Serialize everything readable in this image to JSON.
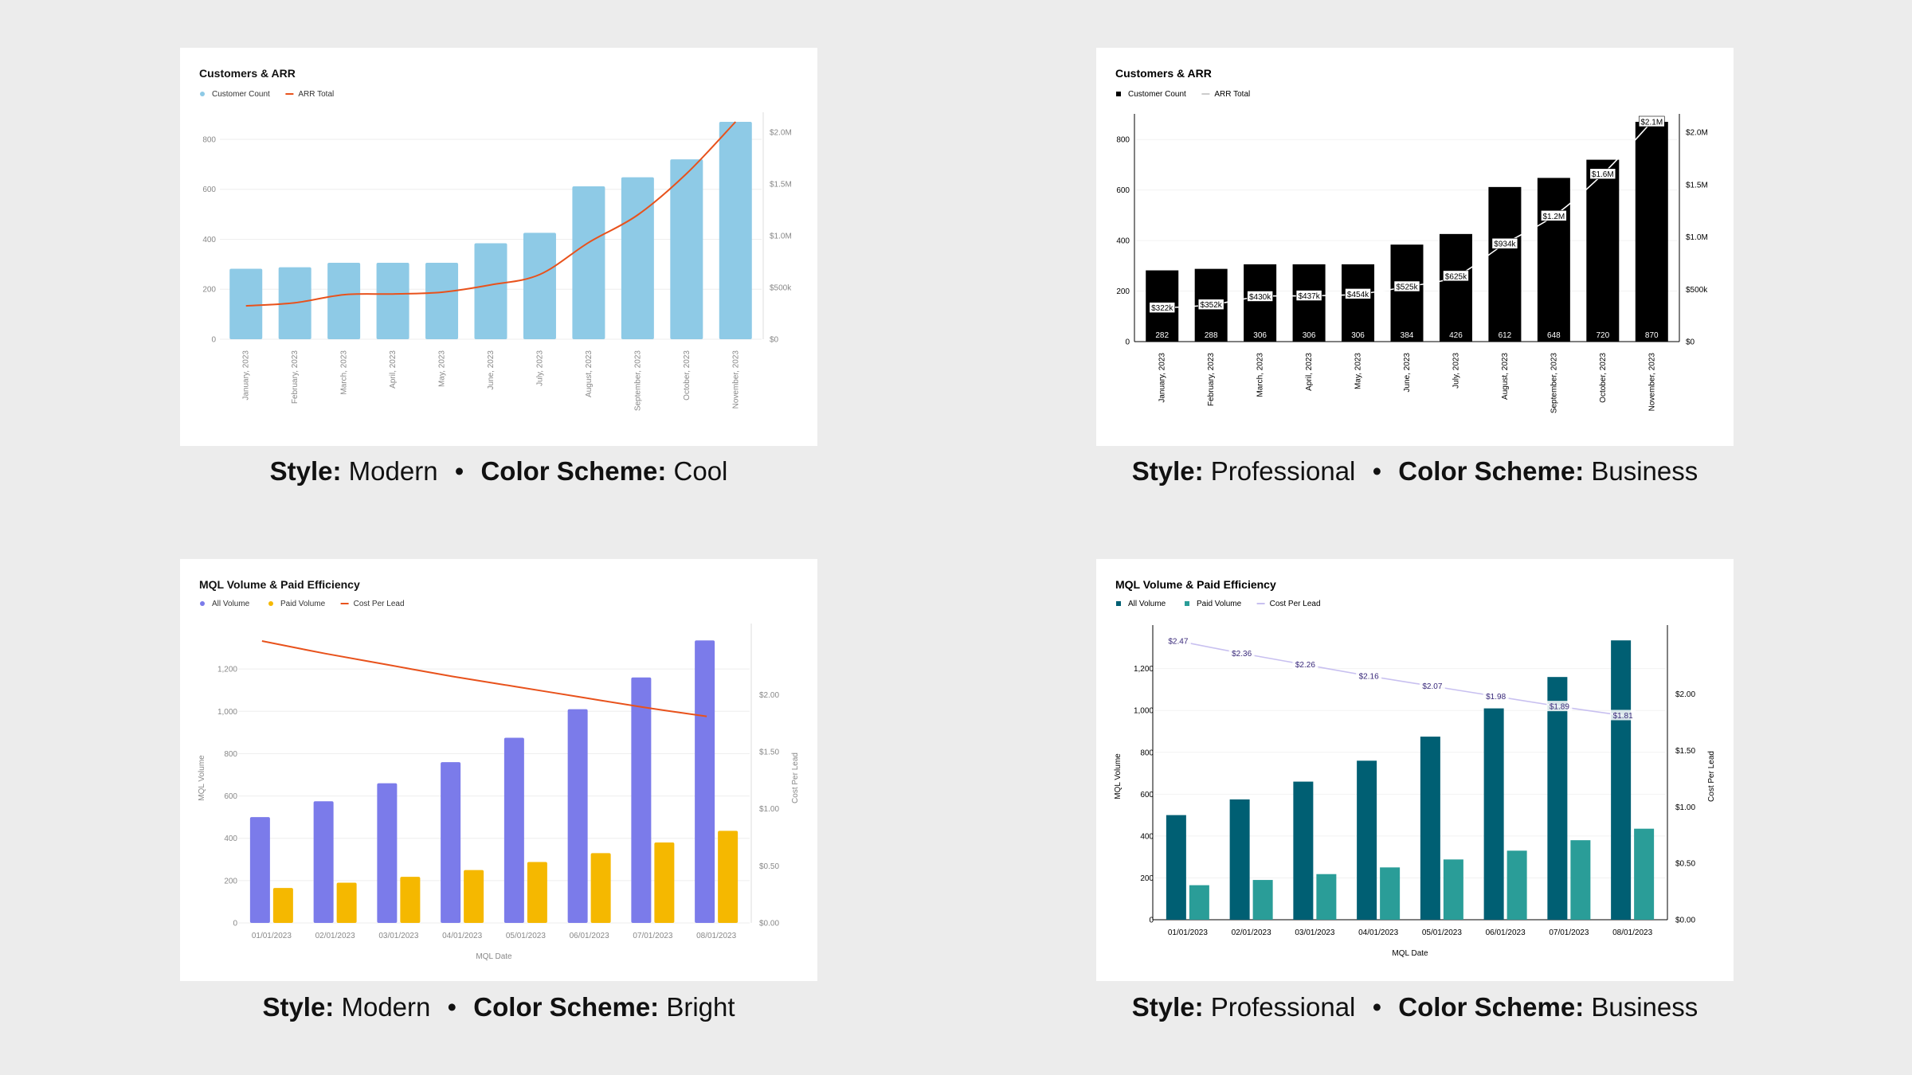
{
  "captions": [
    {
      "style_label": "Style:",
      "style": "Modern",
      "sep": "•",
      "scheme_label": "Color Scheme:",
      "scheme": "Cool"
    },
    {
      "style_label": "Style:",
      "style": "Professional",
      "sep": "•",
      "scheme_label": "Color Scheme:",
      "scheme": "Business"
    },
    {
      "style_label": "Style:",
      "style": "Modern",
      "sep": "•",
      "scheme_label": "Color Scheme:",
      "scheme": "Bright"
    },
    {
      "style_label": "Style:",
      "style": "Professional",
      "sep": "•",
      "scheme_label": "Color Scheme:",
      "scheme": "Business"
    }
  ],
  "chart_data": [
    {
      "type": "bar",
      "title": "Customers & ARR",
      "legend": [
        "Customer Count",
        "ARR Total"
      ],
      "categories": [
        "January, 2023",
        "February, 2023",
        "March, 2023",
        "April, 2023",
        "May, 2023",
        "June, 2023",
        "July, 2023",
        "August, 2023",
        "September, 2023",
        "October, 2023",
        "November, 2023"
      ],
      "series": [
        {
          "name": "Customer Count",
          "type": "bar",
          "axis": "left",
          "values": [
            282,
            288,
            306,
            306,
            306,
            384,
            426,
            612,
            648,
            720,
            870
          ]
        },
        {
          "name": "ARR Total",
          "type": "line",
          "axis": "right",
          "values": [
            322000,
            352000,
            430000,
            437000,
            454000,
            525000,
            625000,
            934000,
            1200000,
            1600000,
            2100000
          ]
        }
      ],
      "ylim_left": [
        0,
        870
      ],
      "yticks_left": [
        0,
        200,
        400,
        600,
        800
      ],
      "ylim_right": [
        0,
        2100000
      ],
      "yticks_right": [
        0,
        500000,
        1000000,
        1500000,
        2000000
      ],
      "yticks_right_labels": [
        "$0",
        "$500k",
        "$1.0M",
        "$1.5M",
        "$2.0M"
      ],
      "colors": {
        "bar": "#8ecae6",
        "line": "#e8521c",
        "axis_text": "#888888",
        "title": "#111111",
        "grid": "#eeeeee"
      },
      "show_data_labels": false
    },
    {
      "type": "bar",
      "title": "Customers & ARR",
      "legend": [
        "Customer Count",
        "ARR Total"
      ],
      "categories": [
        "January, 2023",
        "February, 2023",
        "March, 2023",
        "April, 2023",
        "May, 2023",
        "June, 2023",
        "July, 2023",
        "August, 2023",
        "September, 2023",
        "October, 2023",
        "November, 2023"
      ],
      "series": [
        {
          "name": "Customer Count",
          "type": "bar",
          "axis": "left",
          "values": [
            282,
            288,
            306,
            306,
            306,
            384,
            426,
            612,
            648,
            720,
            870
          ]
        },
        {
          "name": "ARR Total",
          "type": "line",
          "axis": "right",
          "values": [
            322000,
            352000,
            430000,
            437000,
            454000,
            525000,
            625000,
            934000,
            1200000,
            1600000,
            2100000
          ]
        }
      ],
      "bar_labels": [
        "282",
        "288",
        "306",
        "306",
        "306",
        "384",
        "426",
        "612",
        "648",
        "720",
        "870"
      ],
      "line_labels": [
        "$322k",
        "$352k",
        "$430k",
        "$437k",
        "$454k",
        "$525k",
        "$625k",
        "$934k",
        "$1.2M",
        "$1.6M",
        "$2.1M"
      ],
      "ylim_left": [
        0,
        870
      ],
      "yticks_left": [
        0,
        200,
        400,
        600,
        800
      ],
      "ylim_right": [
        0,
        2100000
      ],
      "yticks_right": [
        0,
        500000,
        1000000,
        1500000,
        2000000
      ],
      "yticks_right_labels": [
        "$0",
        "$500k",
        "$1.0M",
        "$1.5M",
        "$2.0M"
      ],
      "colors": {
        "bar": "#000000",
        "line": "#ffffff",
        "line_legend": "#cccccc",
        "axis_text": "#000000",
        "title": "#000000",
        "grid": "#f2f2f2"
      },
      "show_data_labels": true
    },
    {
      "type": "bar",
      "title": "MQL Volume & Paid Efficiency",
      "legend": [
        "All Volume",
        "Paid Volume",
        "Cost Per Lead"
      ],
      "xlabel": "MQL Date",
      "ylabel_left": "MQL Volume",
      "ylabel_right": "Cost Per Lead",
      "categories": [
        "01/01/2023",
        "02/01/2023",
        "03/01/2023",
        "04/01/2023",
        "05/01/2023",
        "06/01/2023",
        "07/01/2023",
        "08/01/2023"
      ],
      "series": [
        {
          "name": "All Volume",
          "type": "bar",
          "axis": "left",
          "values": [
            500,
            575,
            660,
            760,
            875,
            1010,
            1160,
            1335
          ]
        },
        {
          "name": "Paid Volume",
          "type": "bar",
          "axis": "left",
          "values": [
            165,
            190,
            218,
            250,
            288,
            330,
            380,
            435
          ]
        },
        {
          "name": "Cost Per Lead",
          "type": "line",
          "axis": "right",
          "values": [
            2.47,
            2.36,
            2.26,
            2.16,
            2.07,
            1.98,
            1.89,
            1.81
          ]
        }
      ],
      "ylim_left": [
        0,
        1370
      ],
      "yticks_left": [
        0,
        200,
        400,
        600,
        800,
        1000,
        1200
      ],
      "yticks_left_labels": [
        "0",
        "200",
        "400",
        "600",
        "800",
        "1,000",
        "1,200"
      ],
      "ylim_right": [
        0,
        2.54
      ],
      "yticks_right": [
        0,
        0.5,
        1.0,
        1.5,
        2.0
      ],
      "yticks_right_labels": [
        "$0.00",
        "$0.50",
        "$1.00",
        "$1.50",
        "$2.00"
      ],
      "colors": {
        "bar1": "#7b7bea",
        "bar2": "#f5b800",
        "line": "#e8521c",
        "axis_text": "#888888",
        "title": "#111111",
        "grid": "#eeeeee"
      },
      "show_data_labels": false
    },
    {
      "type": "bar",
      "title": "MQL Volume & Paid Efficiency",
      "legend": [
        "All Volume",
        "Paid Volume",
        "Cost Per Lead"
      ],
      "xlabel": "MQL Date",
      "ylabel_left": "MQL Volume",
      "ylabel_right": "Cost Per Lead",
      "categories": [
        "01/01/2023",
        "02/01/2023",
        "03/01/2023",
        "04/01/2023",
        "05/01/2023",
        "06/01/2023",
        "07/01/2023",
        "08/01/2023"
      ],
      "series": [
        {
          "name": "All Volume",
          "type": "bar",
          "axis": "left",
          "values": [
            500,
            575,
            660,
            760,
            875,
            1010,
            1160,
            1335
          ]
        },
        {
          "name": "Paid Volume",
          "type": "bar",
          "axis": "left",
          "values": [
            165,
            190,
            218,
            250,
            288,
            330,
            380,
            435
          ]
        },
        {
          "name": "Cost Per Lead",
          "type": "line",
          "axis": "right",
          "values": [
            2.47,
            2.36,
            2.26,
            2.16,
            2.07,
            1.98,
            1.89,
            1.81
          ]
        }
      ],
      "line_labels": [
        "$2.47",
        "$2.36",
        "$2.26",
        "$2.16",
        "$2.07",
        "$1.98",
        "$1.89",
        "$1.81"
      ],
      "ylim_left": [
        0,
        1370
      ],
      "yticks_left": [
        0,
        200,
        400,
        600,
        800,
        1000,
        1200
      ],
      "yticks_left_labels": [
        "0",
        "200",
        "400",
        "600",
        "800",
        "1,000",
        "1,200"
      ],
      "ylim_right": [
        0,
        2.54
      ],
      "yticks_right": [
        0,
        0.5,
        1.0,
        1.5,
        2.0
      ],
      "yticks_right_labels": [
        "$0.00",
        "$0.50",
        "$1.00",
        "$1.50",
        "$2.00"
      ],
      "colors": {
        "bar1": "#005f73",
        "bar2": "#2a9d98",
        "line": "#c8c0f0",
        "label_text": "#3a2a7a",
        "axis_text": "#000000",
        "title": "#000000",
        "grid": "#f2f2f2"
      },
      "show_data_labels": true
    }
  ]
}
